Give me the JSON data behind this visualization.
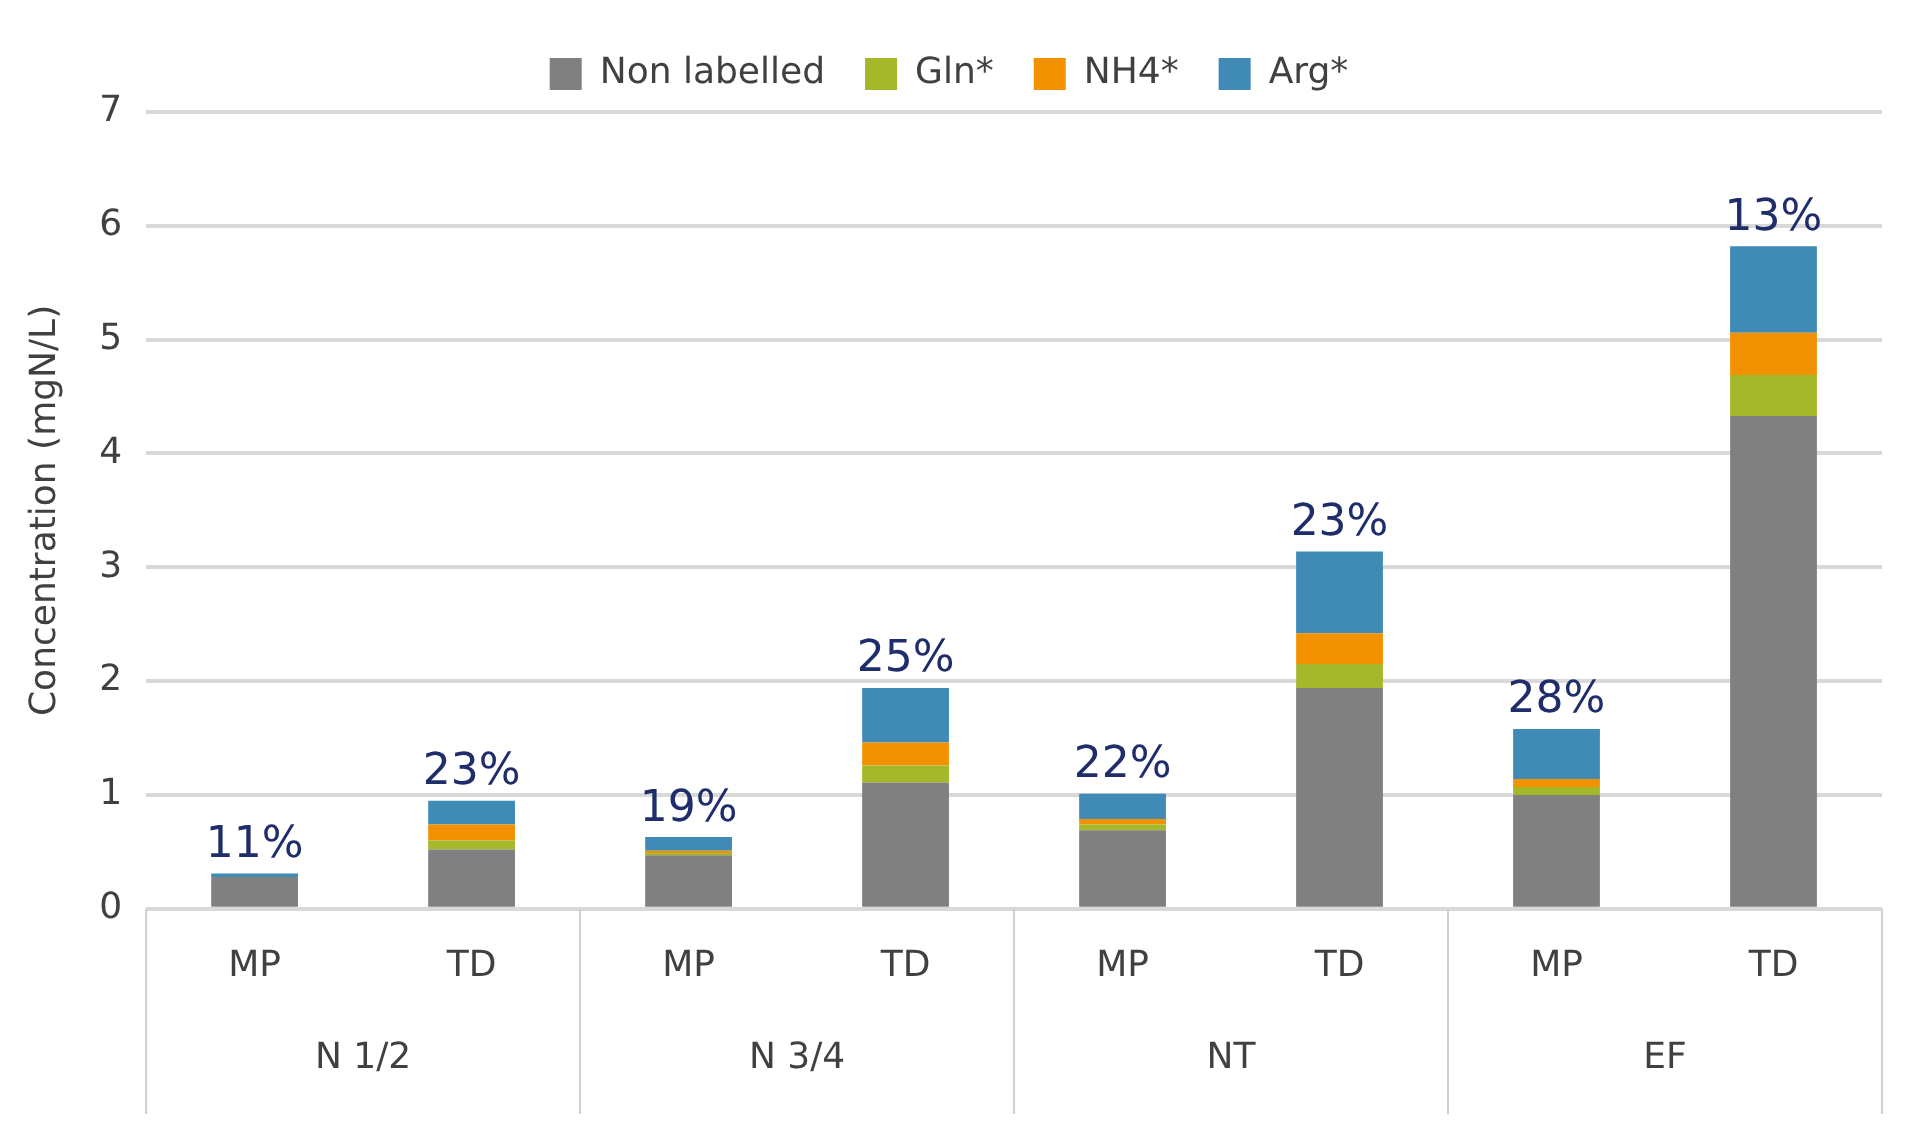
{
  "chart_data": {
    "type": "bar",
    "stacked": true,
    "ylabel": "Concentration (mgN/L)",
    "categories": [
      "MP",
      "TD",
      "MP",
      "TD",
      "MP",
      "TD",
      "MP",
      "TD"
    ],
    "series": [
      {
        "name": "Non labelled",
        "color": "#808080",
        "values": [
          0.28,
          0.52,
          0.47,
          1.11,
          0.69,
          1.94,
          1.0,
          4.33
        ]
      },
      {
        "name": "Gln*",
        "color": "#a5b82a",
        "values": [
          0.0,
          0.08,
          0.02,
          0.15,
          0.05,
          0.21,
          0.07,
          0.36
        ]
      },
      {
        "name": "NH4*",
        "color": "#f39200",
        "values": [
          0.0,
          0.14,
          0.02,
          0.2,
          0.05,
          0.27,
          0.07,
          0.37
        ]
      },
      {
        "name": "Arg*",
        "color": "#3f8bb5",
        "values": [
          0.03,
          0.21,
          0.12,
          0.48,
          0.22,
          0.72,
          0.44,
          0.76
        ]
      }
    ],
    "annotations": [
      "N 1/2",
      "N 3/4",
      "NT",
      "EF",
      {
        "text": "11%",
        "y": 0.31
      },
      {
        "text": "23%",
        "y": 0.95
      },
      {
        "text": "19%",
        "y": 0.63
      },
      {
        "text": "25%",
        "y": 1.94
      },
      {
        "text": "22%",
        "y": 1.01
      },
      {
        "text": "23%",
        "y": 3.14
      },
      {
        "text": "28%",
        "y": 1.58
      },
      {
        "text": "13%",
        "y": 5.82
      }
    ],
    "ylim": [
      0,
      7
    ],
    "yticks": [
      0,
      1,
      2,
      3,
      4,
      5,
      6,
      7
    ],
    "grid": "y",
    "legend": "top"
  }
}
